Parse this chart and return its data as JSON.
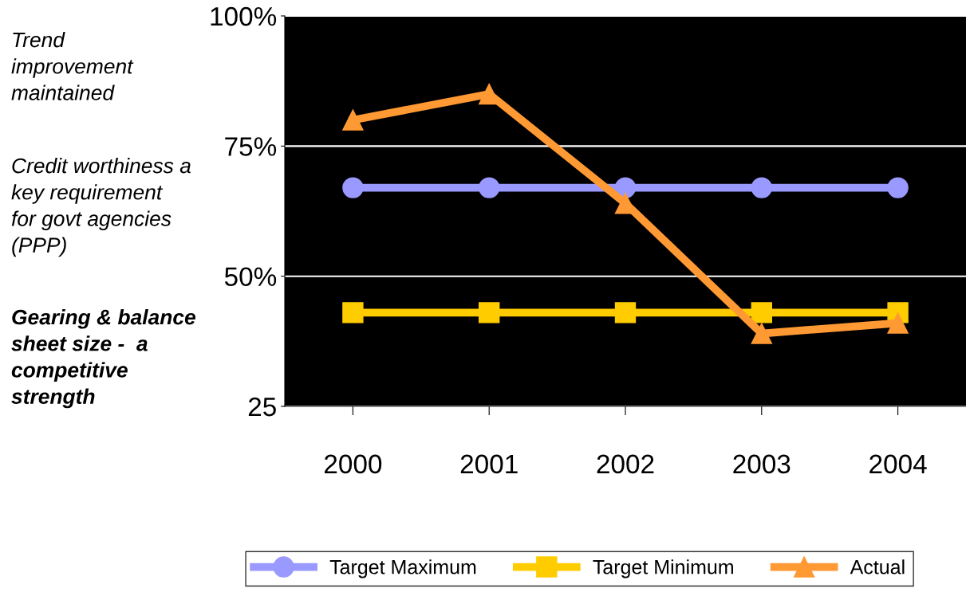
{
  "chart_data": {
    "type": "line",
    "categories": [
      "2000",
      "2001",
      "2002",
      "2003",
      "2004"
    ],
    "series": [
      {
        "name": "Target Maximum",
        "color": "#9999ff",
        "marker": "circle",
        "values": [
          67,
          67,
          67,
          67,
          67
        ]
      },
      {
        "name": "Target Minimum",
        "color": "#ffcc00",
        "marker": "square",
        "values": [
          43,
          43,
          43,
          43,
          43
        ]
      },
      {
        "name": "Actual",
        "color": "#ff9933",
        "marker": "triangle",
        "values": [
          80,
          85,
          64,
          39,
          41
        ]
      }
    ],
    "ylim": [
      25,
      100
    ],
    "yticks": [
      {
        "value": 25,
        "label": "25"
      },
      {
        "value": 50,
        "label": "50%"
      },
      {
        "value": 75,
        "label": "75%"
      },
      {
        "value": 100,
        "label": "100%"
      }
    ],
    "grid": "y",
    "legend": "bottom",
    "annotations": [
      "Trend\nimprovement\nmaintained",
      "Credit worthiness a\nkey requirement\nfor govt agencies\n(PPP)",
      "Gearing & balance\nsheet size -  a\ncompetitive\nstrength"
    ]
  }
}
